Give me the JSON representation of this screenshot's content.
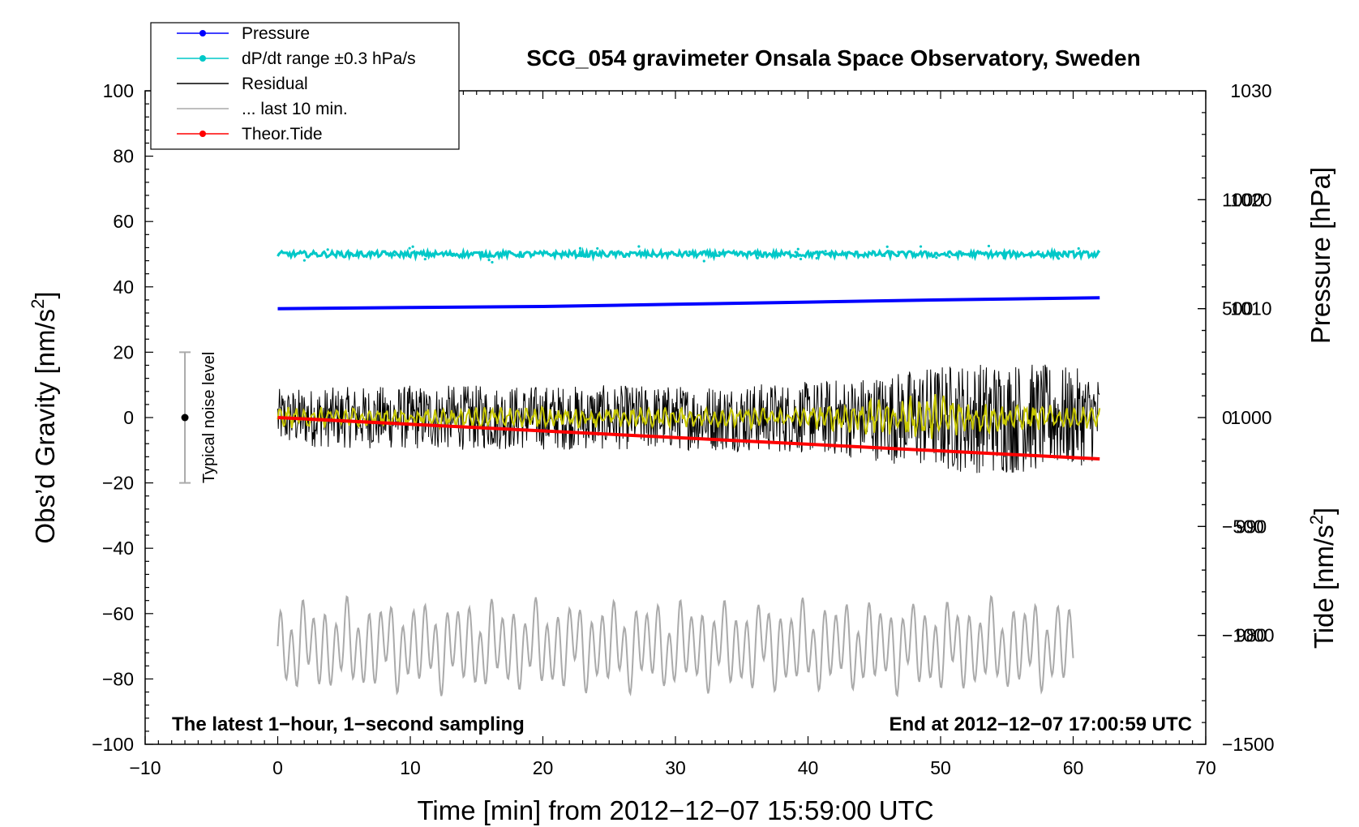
{
  "chart_data": {
    "type": "line",
    "title": "SCG_054 gravimeter Onsala Space Observatory, Sweden",
    "xlabel": "Time [min] from 2012−12−07 15:59:00 UTC",
    "ylabel_left": "Obs’d Gravity [nm/s²]",
    "ylabel_left_base": "Obs’d Gravity [nm/s",
    "ylabel_left_sup": "2",
    "ylabel_left_end": "]",
    "ylabel_right_pressure": "Pressure [hPa]",
    "ylabel_right_tide": "Tide [nm/s²]",
    "ylabel_right_tide_base": "Tide [nm/s",
    "ylabel_right_tide_sup": "2",
    "ylabel_right_tide_end": "]",
    "xlim": [
      -10,
      70
    ],
    "ylim": [
      -100,
      100
    ],
    "pressure_lim": [
      970,
      1030
    ],
    "tide_lim": [
      -1500,
      1500
    ],
    "x_ticks": [
      "−10",
      "0",
      "10",
      "20",
      "30",
      "40",
      "50",
      "60",
      "70"
    ],
    "y_ticks": [
      "100",
      "80",
      "60",
      "40",
      "20",
      "0",
      "−20",
      "−40",
      "−60",
      "−80",
      "−100"
    ],
    "pressure_ticks": [
      "1030",
      "1020",
      "1010",
      "1000",
      "990",
      "980"
    ],
    "tide_ticks": [
      "1000",
      "500",
      "0",
      "−500",
      "−1000",
      "−1500"
    ],
    "annotation_left": "The latest 1−hour, 1−second sampling",
    "annotation_right": "End at 2012−12−07 17:00:59 UTC",
    "noise_label": "Typical noise level",
    "noise_bar": {
      "x": -7,
      "center": 0,
      "low": -20,
      "high": 20
    },
    "legend": [
      {
        "label": "Pressure",
        "color": "#0000ff",
        "style": "line-dot"
      },
      {
        "label": "dP/dt range ±0.3 hPa/s",
        "color": "#00c8c8",
        "style": "line-dot"
      },
      {
        "label": "Residual",
        "color": "#000000",
        "style": "line"
      },
      {
        "label": "... last 10 min.",
        "color": "#aaaaaa",
        "style": "line"
      },
      {
        "label": "Theor.Tide",
        "color": "#ff0000",
        "style": "line-dot"
      }
    ],
    "series": [
      {
        "name": "Pressure",
        "axis": "pressure",
        "color": "#0000ff",
        "x": [
          0,
          10,
          20,
          30,
          40,
          50,
          62
        ],
        "values": [
          1010.0,
          1010.1,
          1010.2,
          1010.4,
          1010.6,
          1010.8,
          1011.0
        ]
      },
      {
        "name": "dP/dt range ±0.3 hPa/s",
        "axis": "left",
        "color": "#00c8c8",
        "x": [
          0,
          62
        ],
        "values": [
          50,
          50
        ]
      },
      {
        "name": "Residual",
        "axis": "left",
        "color": "#000000",
        "x_start": 0,
        "x_end": 62,
        "envelope": [
          [
            0,
            8
          ],
          [
            10,
            9
          ],
          [
            20,
            9
          ],
          [
            30,
            9
          ],
          [
            40,
            10
          ],
          [
            45,
            12
          ],
          [
            50,
            15
          ],
          [
            55,
            16
          ],
          [
            60,
            14
          ],
          [
            62,
            12
          ]
        ]
      },
      {
        "name": "Residual smoothed",
        "axis": "left",
        "color": "#c8c800",
        "x_start": 0,
        "x_end": 62,
        "envelope": [
          [
            0,
            3
          ],
          [
            40,
            3
          ],
          [
            44,
            5
          ],
          [
            50,
            7
          ],
          [
            55,
            4
          ],
          [
            62,
            3
          ]
        ]
      },
      {
        "name": "... last 10 min.",
        "axis": "left",
        "color": "#aaaaaa",
        "x_start": 0,
        "x_end": 60,
        "center": -70,
        "amplitude": 13
      },
      {
        "name": "Theor.Tide",
        "axis": "tide",
        "color": "#ff0000",
        "x": [
          0,
          62
        ],
        "values": [
          0,
          -190
        ]
      }
    ]
  }
}
